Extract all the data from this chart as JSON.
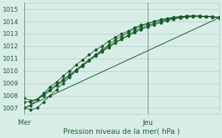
{
  "title": "",
  "xlabel": "Pression niveau de la mer( hPa )",
  "ylabel": "",
  "bg_color": "#d8ede8",
  "grid_color": "#aacfbc",
  "line_color": "#1a5c2a",
  "axis_label_color": "#1a5c2a",
  "tick_label_color": "#1a5c2a",
  "ylim": [
    1006.5,
    1015.5
  ],
  "xlim": [
    0,
    60
  ],
  "yticks": [
    1007,
    1008,
    1009,
    1010,
    1011,
    1012,
    1013,
    1014,
    1015
  ],
  "mer_x": 0,
  "jeu_x": 38,
  "line1_x": [
    0,
    2,
    4,
    6,
    8,
    10,
    12,
    14,
    16,
    18,
    20,
    22,
    24,
    26,
    28,
    30,
    32,
    34,
    36,
    38,
    40,
    42,
    44,
    46,
    48,
    50,
    52,
    54,
    56,
    58,
    60
  ],
  "line1_y": [
    1007.0,
    1007.2,
    1007.7,
    1008.2,
    1008.7,
    1009.1,
    1009.6,
    1010.0,
    1010.5,
    1010.9,
    1011.3,
    1011.7,
    1012.0,
    1012.4,
    1012.7,
    1013.0,
    1013.2,
    1013.5,
    1013.7,
    1013.85,
    1014.0,
    1014.1,
    1014.2,
    1014.3,
    1014.35,
    1014.4,
    1014.42,
    1014.4,
    1014.38,
    1014.35,
    1014.3
  ],
  "line2_x": [
    0,
    2,
    4,
    6,
    8,
    10,
    12,
    14,
    16,
    18,
    20,
    22,
    24,
    26,
    28,
    30,
    32,
    34,
    36,
    38,
    40,
    42,
    44,
    46,
    48,
    50,
    52,
    54,
    56,
    58,
    60
  ],
  "line2_y": [
    1007.05,
    1006.85,
    1007.0,
    1007.5,
    1008.0,
    1008.5,
    1009.0,
    1009.5,
    1010.0,
    1010.5,
    1010.9,
    1011.3,
    1011.7,
    1012.1,
    1012.5,
    1012.8,
    1013.1,
    1013.4,
    1013.6,
    1013.8,
    1014.0,
    1014.15,
    1014.25,
    1014.35,
    1014.4,
    1014.45,
    1014.47,
    1014.45,
    1014.42,
    1014.38,
    1014.35
  ],
  "line3_x": [
    0,
    2,
    4,
    6,
    8,
    10,
    12,
    14,
    16,
    18,
    20,
    22,
    24,
    26,
    28,
    30,
    32,
    34,
    36,
    38,
    40,
    42,
    44,
    46,
    48,
    50,
    52,
    54,
    56,
    58,
    60
  ],
  "line3_y": [
    1007.5,
    1007.5,
    1007.7,
    1008.1,
    1008.5,
    1008.9,
    1009.3,
    1009.7,
    1010.1,
    1010.5,
    1010.9,
    1011.3,
    1011.6,
    1012.0,
    1012.3,
    1012.6,
    1012.9,
    1013.2,
    1013.45,
    1013.65,
    1013.85,
    1014.0,
    1014.15,
    1014.25,
    1014.33,
    1014.4,
    1014.43,
    1014.43,
    1014.4,
    1014.37,
    1014.33
  ],
  "line4_x": [
    0,
    2,
    4,
    6,
    8,
    10,
    12,
    14,
    16,
    18,
    20,
    22,
    24,
    26,
    28,
    30,
    32,
    34,
    36,
    38,
    40,
    42,
    44,
    46,
    48,
    50,
    52,
    54,
    56,
    58,
    60
  ],
  "line4_y": [
    1007.8,
    1007.6,
    1007.7,
    1008.0,
    1008.4,
    1008.8,
    1009.2,
    1009.6,
    1010.0,
    1010.4,
    1010.8,
    1011.2,
    1011.55,
    1011.9,
    1012.25,
    1012.55,
    1012.85,
    1013.1,
    1013.35,
    1013.55,
    1013.75,
    1013.9,
    1014.05,
    1014.18,
    1014.28,
    1014.35,
    1014.4,
    1014.4,
    1014.38,
    1014.35,
    1014.3
  ],
  "line5_x": [
    0,
    60
  ],
  "line5_y": [
    1007.0,
    1014.3
  ]
}
